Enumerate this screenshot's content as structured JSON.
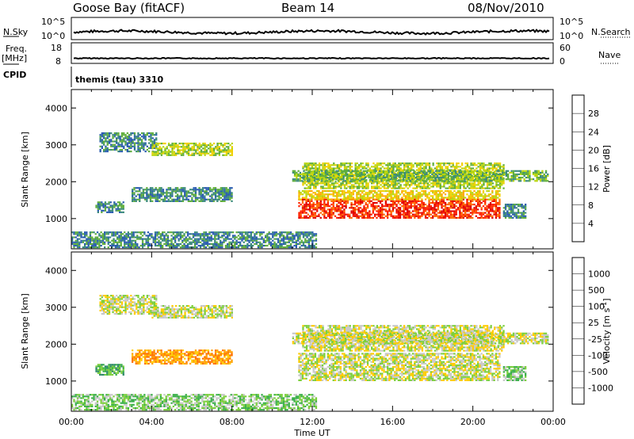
{
  "header": {
    "station": "Goose Bay (fitACF)",
    "beam": "Beam 14",
    "date": "08/Nov/2010"
  },
  "status_panels": {
    "nsky_label": "N.Sky",
    "nsearch_label": "N.Search",
    "nsky_ticks": [
      "10^5",
      "10^0"
    ],
    "nsearch_ticks": [
      "10^5",
      "10^0"
    ],
    "freq_label": "Freq.",
    "freq_unit": "[MHz]",
    "freq_ticks": [
      "18",
      "8"
    ],
    "nave_label": "Nave",
    "nave_ticks": [
      "60",
      "0"
    ],
    "cpid_label": "CPID",
    "cpid_value": "themis (tau) 3310"
  },
  "chart_data": [
    {
      "type": "heatmap",
      "name": "power",
      "ylabel": "Slant Range [km]",
      "ylim": [
        180,
        4500
      ],
      "yticks": [
        "1000",
        "2000",
        "3000",
        "4000"
      ],
      "colorbar": {
        "label": "Power [dB]",
        "ticks": [
          "4",
          "8",
          "12",
          "16",
          "20",
          "24",
          "28"
        ],
        "colors": [
          "#1a1aff",
          "#2a5cb0",
          "#3b8a7c",
          "#5fae3b",
          "#b9d60f",
          "#f0d000",
          "#ffa800",
          "#ff6a00",
          "#ff2200",
          "#e00000"
        ]
      },
      "regions": [
        {
          "t": [
            1.4,
            4.2
          ],
          "r": [
            2800,
            3300
          ],
          "level": 2
        },
        {
          "t": [
            4.0,
            8.0
          ],
          "r": [
            2700,
            3050
          ],
          "level": 4
        },
        {
          "t": [
            3.0,
            8.0
          ],
          "r": [
            1450,
            1850
          ],
          "level": 2
        },
        {
          "t": [
            1.2,
            2.6
          ],
          "r": [
            1150,
            1450
          ],
          "level": 2
        },
        {
          "t": [
            0.0,
            12.2
          ],
          "r": [
            200,
            650
          ],
          "level": 2
        },
        {
          "t": [
            11.3,
            21.3
          ],
          "r": [
            1000,
            1500
          ],
          "level": 8
        },
        {
          "t": [
            11.3,
            21.3
          ],
          "r": [
            1500,
            1750
          ],
          "level": 5
        },
        {
          "t": [
            11.5,
            21.5
          ],
          "r": [
            1800,
            2500
          ],
          "level": 4
        },
        {
          "t": [
            11.0,
            23.7
          ],
          "r": [
            2000,
            2300
          ],
          "level": 3
        },
        {
          "t": [
            21.5,
            22.6
          ],
          "r": [
            1000,
            1400
          ],
          "level": 2
        }
      ]
    },
    {
      "type": "heatmap",
      "name": "velocity",
      "ylabel": "Slant Range [km]",
      "ylim": [
        180,
        4500
      ],
      "yticks": [
        "1000",
        "2000",
        "3000",
        "4000"
      ],
      "colorbar": {
        "label": "Velocity [m s^-1]",
        "ticks": [
          "1000",
          "500",
          "100",
          "25",
          "-25",
          "-100",
          "-500",
          "-1000"
        ],
        "colors": [
          "#1a1ab0",
          "#1f5fa0",
          "#2e8a6a",
          "#3bb04a",
          "#7ccf3c",
          "#c8c8c8",
          "#ffcc00",
          "#ffa000",
          "#ff7000",
          "#ff3000",
          "#e00000"
        ]
      },
      "regions": [
        {
          "t": [
            1.4,
            4.2
          ],
          "r": [
            2800,
            3300
          ],
          "level": 5
        },
        {
          "t": [
            4.0,
            8.0
          ],
          "r": [
            2700,
            3050
          ],
          "level": 5
        },
        {
          "t": [
            3.0,
            8.0
          ],
          "r": [
            1450,
            1850
          ],
          "level": 7
        },
        {
          "t": [
            1.2,
            2.6
          ],
          "r": [
            1150,
            1450
          ],
          "level": 3
        },
        {
          "t": [
            0.0,
            12.2
          ],
          "r": [
            200,
            650
          ],
          "level": 4
        },
        {
          "t": [
            11.3,
            21.3
          ],
          "r": [
            1000,
            1750
          ],
          "level": 5
        },
        {
          "t": [
            11.5,
            21.5
          ],
          "r": [
            1800,
            2500
          ],
          "level": 5
        },
        {
          "t": [
            11.0,
            23.7
          ],
          "r": [
            2000,
            2300
          ],
          "level": 5
        },
        {
          "t": [
            21.5,
            22.6
          ],
          "r": [
            1000,
            1400
          ],
          "level": 4
        }
      ]
    }
  ],
  "xaxis": {
    "label": "Time UT",
    "ticks": [
      "00:00",
      "04:00",
      "08:00",
      "12:00",
      "16:00",
      "20:00",
      "00:00"
    ]
  }
}
